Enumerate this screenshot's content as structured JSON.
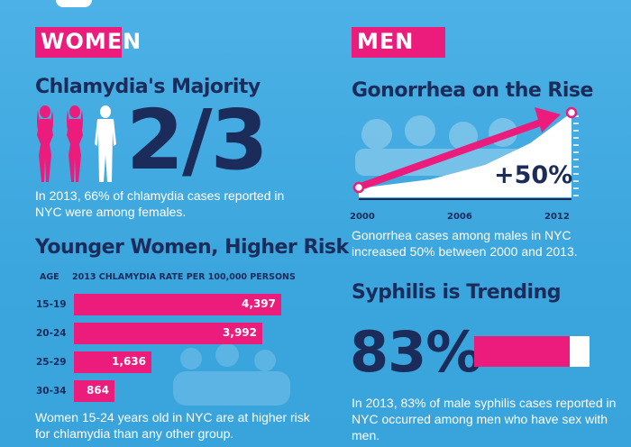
{
  "women": {
    "tag": "WOMEN",
    "majority": {
      "heading": "Chlamydia's Majority",
      "big_stat": "2/3",
      "text": "In 2013, 66% of chlamydia cases reported in NYC were among females."
    },
    "risk": {
      "heading": "Younger Women, Higher Risk",
      "col_age": "AGE",
      "col_rate": "2013 CHLAMYDIA RATE PER 100,000 PERSONS",
      "rows": [
        {
          "age": "15-19",
          "rate_label": "4,397",
          "rate": 4397
        },
        {
          "age": "20-24",
          "rate_label": "3,992",
          "rate": 3992
        },
        {
          "age": "25-29",
          "rate_label": "1,636",
          "rate": 1636
        },
        {
          "age": "30-34",
          "rate_label": "864",
          "rate": 864
        }
      ],
      "text": "Women 15-24 years old in NYC are at higher risk for chlamydia than any other group."
    }
  },
  "men": {
    "tag": "MEN",
    "gonorrhea": {
      "heading": "Gonorrhea on the Rise",
      "big_stat": "+50%",
      "years": [
        "2000",
        "2006",
        "2012"
      ],
      "text": "Gonorrhea cases among males in NYC increased 50% between 2000 and 2013."
    },
    "syphilis": {
      "heading": "Syphilis is Trending",
      "big_stat": "83%",
      "fraction": 0.83,
      "text": "In 2013, 83% of male syphilis cases reported in NYC occurred among men who have sex with men."
    }
  },
  "colors": {
    "background": "#3fa9e0",
    "accent": "#ec1c7c",
    "navy": "#1b2b5a",
    "white": "#ffffff"
  },
  "icons": [
    "female-silhouette-icon",
    "male-silhouette-icon",
    "trend-arrow-icon"
  ]
}
